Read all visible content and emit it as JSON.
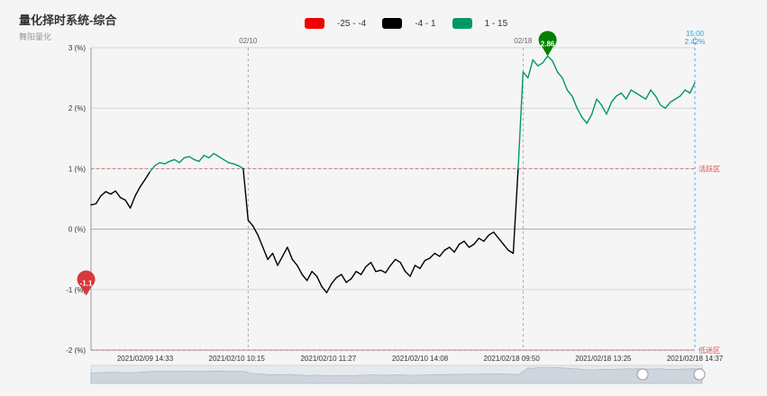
{
  "header": {
    "title": "量化择时系统-综合",
    "subtitle": "舞阳量化"
  },
  "legend": [
    {
      "label": "-25 - -4",
      "color": "#ee0000"
    },
    {
      "label": "-4 - 1",
      "color": "#000000"
    },
    {
      "label": "1 - 15",
      "color": "#009966"
    }
  ],
  "chart_data": {
    "type": "line",
    "ylim": [
      -2,
      3
    ],
    "yticks": [
      "3 (%)",
      "2 (%)",
      "1 (%)",
      "0 (%)",
      "-1 (%)",
      "-2 (%)"
    ],
    "xticks": [
      "2021/02/09 14:33",
      "2021/02/10 10:15",
      "2021/02/10 11:27",
      "2021/02/10 14:08",
      "2021/02/18 09:50",
      "2021/02/18 13:25",
      "2021/02/18 14:37"
    ],
    "day_markers": [
      "02/10",
      "02/18"
    ],
    "threshold_lines": [
      {
        "value": 1,
        "label": "活跃区"
      },
      {
        "value": -2,
        "label": "低迷区"
      }
    ],
    "pieces": [
      {
        "min": -25,
        "max": -4,
        "color": "#ee0000"
      },
      {
        "min": -4,
        "max": 1,
        "color": "#000000"
      },
      {
        "min": 1,
        "max": 15,
        "color": "#009966"
      }
    ],
    "mark_max": {
      "label": "2.86",
      "value": 2.86,
      "color": "#007f00"
    },
    "mark_min": {
      "label": "-1.1",
      "value": -1.1,
      "color": "#d63a3a"
    },
    "cursor": {
      "time": "15:00",
      "value": "2.42%"
    },
    "series": [
      {
        "values": [
          0.4,
          0.42,
          0.55,
          0.62,
          0.58,
          0.63,
          0.52,
          0.48,
          0.35,
          0.55,
          0.7,
          0.82,
          0.95,
          1.05,
          1.1,
          1.08,
          1.12,
          1.15,
          1.1,
          1.18,
          1.2,
          1.15,
          1.12,
          1.22,
          1.18,
          1.25,
          1.2,
          1.15,
          1.1,
          1.08,
          1.05,
          1.0,
          0.15,
          0.05,
          -0.1,
          -0.3,
          -0.5,
          -0.4,
          -0.6,
          -0.45,
          -0.3,
          -0.5,
          -0.6,
          -0.75,
          -0.85,
          -0.7,
          -0.78,
          -0.95,
          -1.05,
          -0.9,
          -0.8,
          -0.75,
          -0.88,
          -0.82,
          -0.7,
          -0.75,
          -0.62,
          -0.55,
          -0.7,
          -0.68,
          -0.72,
          -0.6,
          -0.5,
          -0.55,
          -0.7,
          -0.78,
          -0.6,
          -0.65,
          -0.52,
          -0.48,
          -0.4,
          -0.45,
          -0.35,
          -0.3,
          -0.38,
          -0.25,
          -0.2,
          -0.3,
          -0.25,
          -0.15,
          -0.2,
          -0.1,
          -0.05,
          -0.15,
          -0.25,
          -0.35,
          -0.4,
          1.0,
          2.6,
          2.5,
          2.8,
          2.7,
          2.75,
          2.86,
          2.78,
          2.6,
          2.5,
          2.3,
          2.2,
          2.0,
          1.85,
          1.75,
          1.9,
          2.15,
          2.05,
          1.9,
          2.1,
          2.2,
          2.25,
          2.15,
          2.3,
          2.25,
          2.2,
          2.15,
          2.3,
          2.2,
          2.05,
          2.0,
          2.1,
          2.15,
          2.2,
          2.3,
          2.25,
          2.42
        ]
      }
    ]
  }
}
